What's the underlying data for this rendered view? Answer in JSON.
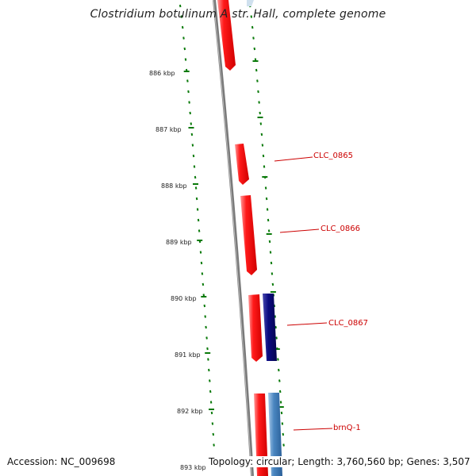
{
  "title": "Clostridium botulinum A str. Hall, complete genome",
  "accession_text": "Accession: NC_009698",
  "topology_text": "Topology: circular; Length: 3,760,560 bp; Genes: 3,507",
  "scale_labels": [
    "886 kbp",
    "887 kbp",
    "888 kbp",
    "889 kbp",
    "890 kbp",
    "891 kbp",
    "892 kbp",
    "893 kbp"
  ],
  "gene_labels": [
    "CLC_0865",
    "CLC_0866",
    "CLC_0867",
    "brnQ-1"
  ],
  "colors": {
    "forward_gene": "#ff1010",
    "reverse_gene": "#0a0a80",
    "light_blue_gene": "#4a86c0",
    "ticks": "#0a7a0a",
    "backbone": "#777777",
    "label_red": "#cc0000"
  }
}
